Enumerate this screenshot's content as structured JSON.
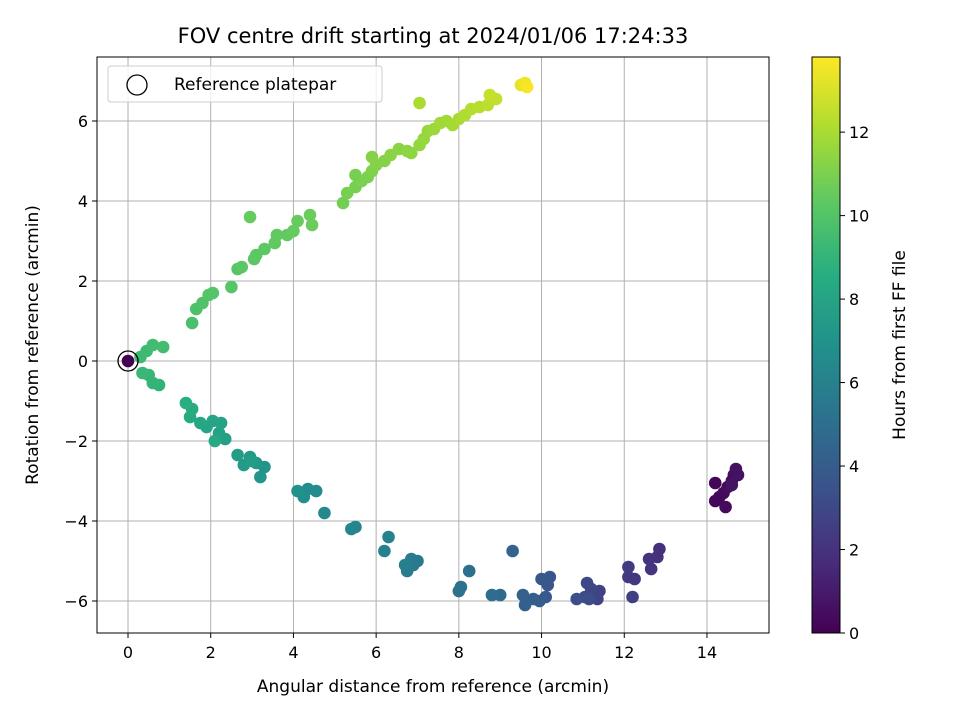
{
  "chart_data": {
    "type": "scatter",
    "title": "FOV centre drift starting at 2024/01/06 17:24:33",
    "xlabel": "Angular distance from reference (arcmin)",
    "ylabel": "Rotation from reference (arcmin)",
    "xlim": [
      -0.75,
      15.5
    ],
    "ylim": [
      -6.8,
      7.6
    ],
    "xticks": [
      0,
      2,
      4,
      6,
      8,
      10,
      12,
      14
    ],
    "yticks": [
      -6,
      -4,
      -2,
      0,
      2,
      4,
      6
    ],
    "grid": true,
    "legend": {
      "placement": "top-left",
      "entries": [
        "Reference platepar"
      ]
    },
    "reference_point": {
      "x": 0,
      "y": 0
    },
    "colorbar": {
      "label": "Hours from first FF file",
      "range": [
        0,
        13.8
      ],
      "ticks": [
        0,
        2,
        4,
        6,
        8,
        10,
        12
      ],
      "colormap": "viridis"
    },
    "points": [
      [
        14.2,
        -3.05,
        0.2
      ],
      [
        14.2,
        -3.5,
        0.3
      ],
      [
        14.3,
        -3.4,
        0.3
      ],
      [
        14.4,
        -3.3,
        0.35
      ],
      [
        14.45,
        -3.65,
        0.4
      ],
      [
        14.5,
        -3.15,
        0.45
      ],
      [
        14.6,
        -3.0,
        0.5
      ],
      [
        14.65,
        -2.85,
        0.55
      ],
      [
        14.7,
        -2.7,
        0.6
      ],
      [
        14.75,
        -2.85,
        0.65
      ],
      [
        14.6,
        -3.1,
        0.7
      ],
      [
        12.85,
        -4.7,
        1.8
      ],
      [
        12.8,
        -4.9,
        1.9
      ],
      [
        12.6,
        -4.95,
        2.0
      ],
      [
        12.65,
        -5.2,
        2.1
      ],
      [
        12.25,
        -5.45,
        2.2
      ],
      [
        12.1,
        -5.4,
        2.3
      ],
      [
        12.1,
        -5.15,
        2.4
      ],
      [
        12.2,
        -5.9,
        2.5
      ],
      [
        11.4,
        -5.75,
        2.7
      ],
      [
        11.35,
        -5.95,
        2.8
      ],
      [
        11.2,
        -5.7,
        2.9
      ],
      [
        11.1,
        -5.55,
        3.0
      ],
      [
        11.05,
        -5.9,
        3.1
      ],
      [
        11.15,
        -5.95,
        3.2
      ],
      [
        10.85,
        -5.95,
        3.3
      ],
      [
        10.2,
        -5.4,
        3.6
      ],
      [
        10.15,
        -5.6,
        3.7
      ],
      [
        10.0,
        -5.45,
        3.8
      ],
      [
        10.1,
        -5.9,
        3.9
      ],
      [
        9.95,
        -6.0,
        4.0
      ],
      [
        9.8,
        -5.95,
        4.1
      ],
      [
        9.6,
        -6.1,
        4.2
      ],
      [
        9.55,
        -5.85,
        4.3
      ],
      [
        9.3,
        -4.75,
        4.4
      ],
      [
        9.0,
        -5.85,
        4.8
      ],
      [
        8.8,
        -5.85,
        4.9
      ],
      [
        8.25,
        -5.25,
        5.0
      ],
      [
        8.0,
        -5.75,
        5.1
      ],
      [
        8.05,
        -5.65,
        5.2
      ],
      [
        7.0,
        -5.0,
        5.5
      ],
      [
        6.9,
        -5.1,
        5.6
      ],
      [
        6.85,
        -4.95,
        5.7
      ],
      [
        6.75,
        -5.25,
        5.8
      ],
      [
        6.7,
        -5.1,
        5.9
      ],
      [
        6.2,
        -4.75,
        6.0
      ],
      [
        6.3,
        -4.4,
        6.1
      ],
      [
        5.5,
        -4.15,
        6.2
      ],
      [
        5.4,
        -4.2,
        6.3
      ],
      [
        4.75,
        -3.8,
        6.4
      ],
      [
        4.55,
        -3.25,
        6.6
      ],
      [
        4.35,
        -3.2,
        6.7
      ],
      [
        4.25,
        -3.4,
        6.8
      ],
      [
        4.1,
        -3.25,
        6.9
      ],
      [
        3.3,
        -2.65,
        7.1
      ],
      [
        3.2,
        -2.9,
        7.2
      ],
      [
        3.1,
        -2.55,
        7.3
      ],
      [
        2.95,
        -2.4,
        7.4
      ],
      [
        2.8,
        -2.6,
        7.5
      ],
      [
        2.65,
        -2.35,
        7.6
      ],
      [
        3.0,
        -2.5,
        7.6
      ],
      [
        2.35,
        -1.95,
        7.8
      ],
      [
        2.2,
        -1.8,
        7.9
      ],
      [
        2.25,
        -1.55,
        8.0
      ],
      [
        2.05,
        -1.5,
        8.1
      ],
      [
        1.9,
        -1.65,
        8.1
      ],
      [
        1.75,
        -1.55,
        8.2
      ],
      [
        2.1,
        -2.0,
        8.3
      ],
      [
        1.5,
        -1.4,
        8.4
      ],
      [
        1.55,
        -1.2,
        8.5
      ],
      [
        1.4,
        -1.05,
        8.6
      ],
      [
        0.75,
        -0.6,
        8.9
      ],
      [
        0.6,
        -0.55,
        9.0
      ],
      [
        0.5,
        -0.35,
        9.1
      ],
      [
        0.35,
        -0.3,
        9.2
      ],
      [
        0.3,
        0.1,
        9.3
      ],
      [
        0.45,
        0.25,
        9.4
      ],
      [
        0.6,
        0.4,
        9.5
      ],
      [
        0.85,
        0.35,
        9.5
      ],
      [
        1.55,
        0.95,
        9.7
      ],
      [
        1.65,
        1.3,
        9.8
      ],
      [
        1.8,
        1.45,
        9.9
      ],
      [
        1.95,
        1.65,
        10.0
      ],
      [
        2.05,
        1.7,
        10.0
      ],
      [
        2.5,
        1.85,
        10.1
      ],
      [
        2.65,
        2.3,
        10.1
      ],
      [
        2.75,
        2.35,
        10.2
      ],
      [
        3.05,
        2.55,
        10.2
      ],
      [
        3.1,
        2.65,
        10.3
      ],
      [
        3.3,
        2.8,
        10.3
      ],
      [
        3.55,
        2.95,
        10.4
      ],
      [
        3.6,
        3.15,
        10.4
      ],
      [
        3.85,
        3.15,
        10.4
      ],
      [
        4.0,
        3.25,
        10.5
      ],
      [
        4.1,
        3.5,
        10.5
      ],
      [
        4.4,
        3.65,
        10.6
      ],
      [
        4.45,
        3.4,
        10.6
      ],
      [
        2.95,
        3.6,
        10.5
      ],
      [
        5.2,
        3.95,
        10.8
      ],
      [
        5.3,
        4.2,
        10.9
      ],
      [
        5.5,
        4.35,
        10.9
      ],
      [
        5.65,
        4.5,
        11.0
      ],
      [
        5.8,
        4.6,
        11.0
      ],
      [
        5.9,
        4.75,
        11.1
      ],
      [
        6.0,
        4.9,
        11.2
      ],
      [
        6.2,
        5.0,
        11.2
      ],
      [
        6.35,
        5.15,
        11.3
      ],
      [
        6.55,
        5.3,
        11.3
      ],
      [
        6.75,
        5.25,
        11.4
      ],
      [
        6.85,
        5.2,
        11.4
      ],
      [
        7.05,
        5.4,
        11.5
      ],
      [
        7.15,
        5.55,
        11.6
      ],
      [
        7.25,
        5.75,
        11.6
      ],
      [
        7.4,
        5.8,
        11.7
      ],
      [
        7.55,
        5.95,
        11.8
      ],
      [
        7.7,
        6.0,
        11.8
      ],
      [
        7.85,
        5.9,
        11.9
      ],
      [
        8.0,
        6.05,
        12.0
      ],
      [
        8.15,
        6.15,
        12.1
      ],
      [
        8.3,
        6.3,
        12.2
      ],
      [
        8.5,
        6.35,
        12.3
      ],
      [
        8.7,
        6.4,
        12.4
      ],
      [
        8.9,
        6.55,
        12.5
      ],
      [
        8.75,
        6.65,
        12.6
      ],
      [
        7.05,
        6.45,
        12.0
      ],
      [
        5.9,
        5.1,
        11.2
      ],
      [
        5.5,
        4.65,
        10.9
      ],
      [
        9.5,
        6.9,
        13.3
      ],
      [
        9.6,
        6.95,
        13.5
      ],
      [
        9.65,
        6.85,
        13.7
      ]
    ]
  }
}
